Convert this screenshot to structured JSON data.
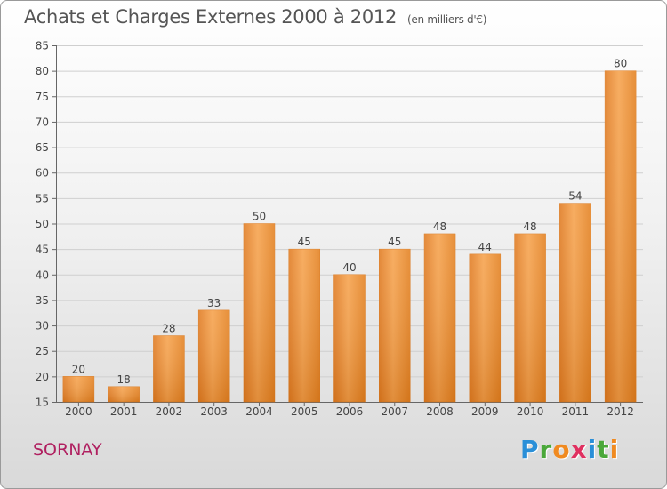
{
  "title": "Achats et Charges Externes 2000 à 2012",
  "unit": "(en milliers d'€)",
  "commune": "SORNAY",
  "logo": {
    "letters": [
      "P",
      "r",
      "o",
      "x",
      "i",
      "t",
      "i"
    ],
    "colors": [
      "#2a8fd8",
      "#4aa83a",
      "#f08a20",
      "#e03060",
      "#2a8fd8",
      "#4aa83a",
      "#f08a20"
    ]
  },
  "chart_data": {
    "type": "bar",
    "title": "Achats et Charges Externes 2000 à 2012",
    "subtitle": "(en milliers d'€)",
    "categories": [
      "2000",
      "2001",
      "2002",
      "2003",
      "2004",
      "2005",
      "2006",
      "2007",
      "2008",
      "2009",
      "2010",
      "2011",
      "2012"
    ],
    "values": [
      20,
      18,
      28,
      33,
      50,
      45,
      40,
      45,
      48,
      44,
      48,
      54,
      80
    ],
    "ylim": [
      15,
      85
    ],
    "yticks": [
      15,
      20,
      25,
      30,
      35,
      40,
      45,
      50,
      55,
      60,
      65,
      70,
      75,
      80,
      85
    ],
    "grid": true,
    "bar_color": "#f0953a"
  }
}
